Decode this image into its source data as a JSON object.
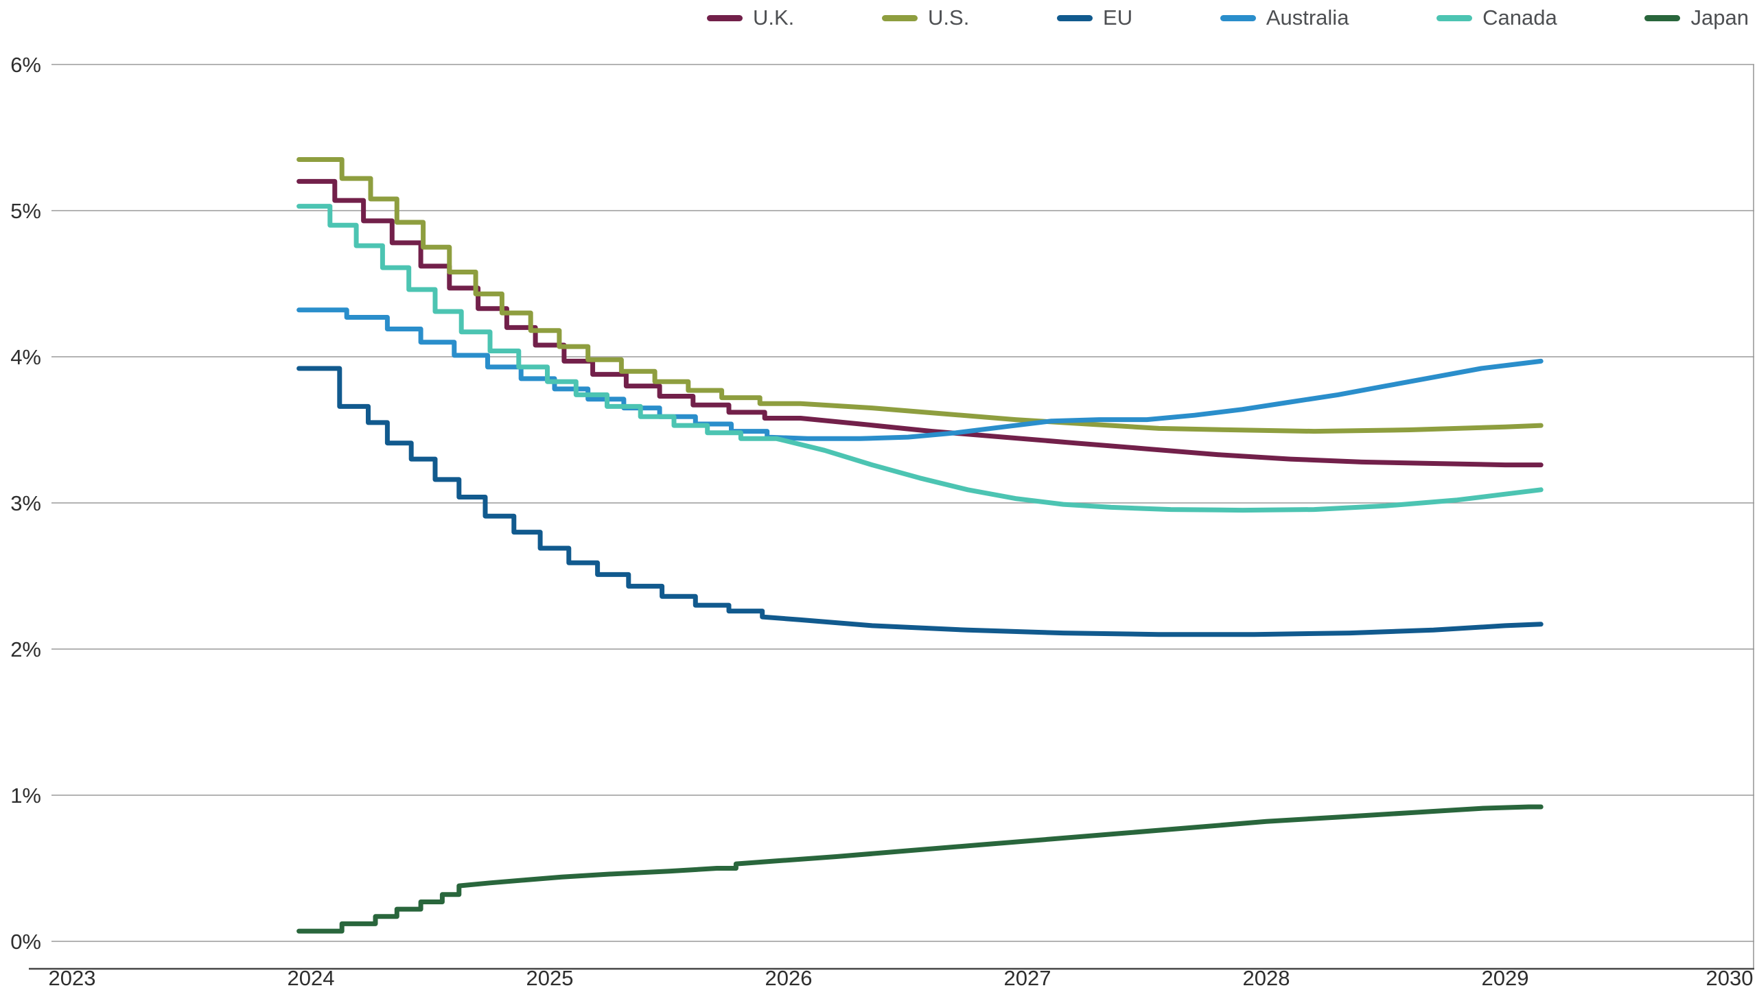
{
  "chart_data": {
    "type": "line",
    "title": "",
    "xlabel": "",
    "ylabel": "",
    "grid": "horizontal",
    "legend_position": "top-right",
    "x_axis": {
      "range": [
        2023,
        2030
      ],
      "ticks": [
        "2023",
        "2024",
        "2025",
        "2026",
        "2027",
        "2028",
        "2029",
        "2030"
      ],
      "tick_values": [
        2023,
        2024,
        2025,
        2026,
        2027,
        2028,
        2029,
        2030
      ]
    },
    "y_axis": {
      "range": [
        0,
        6
      ],
      "ticks": [
        "0%",
        "1%",
        "2%",
        "3%",
        "4%",
        "5%",
        "6%"
      ],
      "tick_values": [
        0,
        1,
        2,
        3,
        4,
        5,
        6
      ]
    },
    "colors": {
      "grid": "#9a9a9a",
      "axis": "#454545",
      "tick_text": "#2e2e2e"
    },
    "series": [
      {
        "name": "U.K.",
        "color": "#72204a",
        "points": [
          [
            2023.95,
            5.2
          ],
          [
            2024.1,
            5.2
          ],
          [
            2024.1,
            5.07
          ],
          [
            2024.22,
            5.07
          ],
          [
            2024.22,
            4.93
          ],
          [
            2024.34,
            4.93
          ],
          [
            2024.34,
            4.78
          ],
          [
            2024.46,
            4.78
          ],
          [
            2024.46,
            4.62
          ],
          [
            2024.58,
            4.62
          ],
          [
            2024.58,
            4.47
          ],
          [
            2024.7,
            4.47
          ],
          [
            2024.7,
            4.33
          ],
          [
            2024.82,
            4.33
          ],
          [
            2024.82,
            4.2
          ],
          [
            2024.94,
            4.2
          ],
          [
            2024.94,
            4.08
          ],
          [
            2025.06,
            4.08
          ],
          [
            2025.06,
            3.97
          ],
          [
            2025.18,
            3.97
          ],
          [
            2025.18,
            3.88
          ],
          [
            2025.32,
            3.88
          ],
          [
            2025.32,
            3.8
          ],
          [
            2025.46,
            3.8
          ],
          [
            2025.46,
            3.73
          ],
          [
            2025.6,
            3.73
          ],
          [
            2025.6,
            3.67
          ],
          [
            2025.75,
            3.67
          ],
          [
            2025.75,
            3.62
          ],
          [
            2025.9,
            3.62
          ],
          [
            2025.9,
            3.58
          ],
          [
            2026.05,
            3.58
          ],
          [
            2026.3,
            3.54
          ],
          [
            2026.6,
            3.49
          ],
          [
            2026.9,
            3.45
          ],
          [
            2027.2,
            3.41
          ],
          [
            2027.5,
            3.37
          ],
          [
            2027.8,
            3.33
          ],
          [
            2028.1,
            3.3
          ],
          [
            2028.4,
            3.28
          ],
          [
            2028.7,
            3.27
          ],
          [
            2029.0,
            3.26
          ],
          [
            2029.15,
            3.26
          ]
        ]
      },
      {
        "name": "U.S.",
        "color": "#8e9e3f",
        "points": [
          [
            2023.95,
            5.35
          ],
          [
            2024.13,
            5.35
          ],
          [
            2024.13,
            5.22
          ],
          [
            2024.25,
            5.22
          ],
          [
            2024.25,
            5.08
          ],
          [
            2024.36,
            5.08
          ],
          [
            2024.36,
            4.92
          ],
          [
            2024.47,
            4.92
          ],
          [
            2024.47,
            4.75
          ],
          [
            2024.58,
            4.75
          ],
          [
            2024.58,
            4.58
          ],
          [
            2024.69,
            4.58
          ],
          [
            2024.69,
            4.43
          ],
          [
            2024.8,
            4.43
          ],
          [
            2024.8,
            4.3
          ],
          [
            2024.92,
            4.3
          ],
          [
            2024.92,
            4.18
          ],
          [
            2025.04,
            4.18
          ],
          [
            2025.04,
            4.07
          ],
          [
            2025.16,
            4.07
          ],
          [
            2025.16,
            3.98
          ],
          [
            2025.3,
            3.98
          ],
          [
            2025.3,
            3.9
          ],
          [
            2025.44,
            3.9
          ],
          [
            2025.44,
            3.83
          ],
          [
            2025.58,
            3.83
          ],
          [
            2025.58,
            3.77
          ],
          [
            2025.72,
            3.77
          ],
          [
            2025.72,
            3.72
          ],
          [
            2025.88,
            3.72
          ],
          [
            2025.88,
            3.68
          ],
          [
            2026.05,
            3.68
          ],
          [
            2026.35,
            3.65
          ],
          [
            2026.65,
            3.61
          ],
          [
            2026.95,
            3.57
          ],
          [
            2027.25,
            3.54
          ],
          [
            2027.55,
            3.51
          ],
          [
            2027.85,
            3.5
          ],
          [
            2028.2,
            3.49
          ],
          [
            2028.6,
            3.5
          ],
          [
            2029.0,
            3.52
          ],
          [
            2029.15,
            3.53
          ]
        ]
      },
      {
        "name": "EU",
        "color": "#115a8e",
        "points": [
          [
            2023.95,
            3.92
          ],
          [
            2024.12,
            3.92
          ],
          [
            2024.12,
            3.66
          ],
          [
            2024.24,
            3.66
          ],
          [
            2024.24,
            3.55
          ],
          [
            2024.32,
            3.55
          ],
          [
            2024.32,
            3.41
          ],
          [
            2024.42,
            3.41
          ],
          [
            2024.42,
            3.3
          ],
          [
            2024.52,
            3.3
          ],
          [
            2024.52,
            3.16
          ],
          [
            2024.62,
            3.16
          ],
          [
            2024.62,
            3.04
          ],
          [
            2024.73,
            3.04
          ],
          [
            2024.73,
            2.91
          ],
          [
            2024.85,
            2.91
          ],
          [
            2024.85,
            2.8
          ],
          [
            2024.96,
            2.8
          ],
          [
            2024.96,
            2.69
          ],
          [
            2025.08,
            2.69
          ],
          [
            2025.08,
            2.59
          ],
          [
            2025.2,
            2.59
          ],
          [
            2025.2,
            2.51
          ],
          [
            2025.33,
            2.51
          ],
          [
            2025.33,
            2.43
          ],
          [
            2025.47,
            2.43
          ],
          [
            2025.47,
            2.36
          ],
          [
            2025.61,
            2.36
          ],
          [
            2025.61,
            2.3
          ],
          [
            2025.75,
            2.3
          ],
          [
            2025.75,
            2.26
          ],
          [
            2025.89,
            2.26
          ],
          [
            2025.89,
            2.22
          ],
          [
            2026.05,
            2.2
          ],
          [
            2026.35,
            2.16
          ],
          [
            2026.75,
            2.13
          ],
          [
            2027.15,
            2.11
          ],
          [
            2027.55,
            2.1
          ],
          [
            2027.95,
            2.1
          ],
          [
            2028.35,
            2.11
          ],
          [
            2028.7,
            2.13
          ],
          [
            2029.0,
            2.16
          ],
          [
            2029.15,
            2.17
          ]
        ]
      },
      {
        "name": "Australia",
        "color": "#2a8ecb",
        "points": [
          [
            2023.95,
            4.32
          ],
          [
            2024.15,
            4.32
          ],
          [
            2024.15,
            4.27
          ],
          [
            2024.32,
            4.27
          ],
          [
            2024.32,
            4.19
          ],
          [
            2024.46,
            4.19
          ],
          [
            2024.46,
            4.1
          ],
          [
            2024.6,
            4.1
          ],
          [
            2024.6,
            4.01
          ],
          [
            2024.74,
            4.01
          ],
          [
            2024.74,
            3.93
          ],
          [
            2024.88,
            3.93
          ],
          [
            2024.88,
            3.85
          ],
          [
            2025.02,
            3.85
          ],
          [
            2025.02,
            3.78
          ],
          [
            2025.16,
            3.78
          ],
          [
            2025.16,
            3.71
          ],
          [
            2025.31,
            3.71
          ],
          [
            2025.31,
            3.65
          ],
          [
            2025.46,
            3.65
          ],
          [
            2025.46,
            3.59
          ],
          [
            2025.61,
            3.59
          ],
          [
            2025.61,
            3.54
          ],
          [
            2025.76,
            3.54
          ],
          [
            2025.76,
            3.49
          ],
          [
            2025.91,
            3.49
          ],
          [
            2025.91,
            3.45
          ],
          [
            2026.08,
            3.44
          ],
          [
            2026.3,
            3.44
          ],
          [
            2026.5,
            3.45
          ],
          [
            2026.7,
            3.48
          ],
          [
            2026.9,
            3.52
          ],
          [
            2027.1,
            3.56
          ],
          [
            2027.3,
            3.57
          ],
          [
            2027.5,
            3.57
          ],
          [
            2027.7,
            3.6
          ],
          [
            2027.9,
            3.64
          ],
          [
            2028.1,
            3.69
          ],
          [
            2028.3,
            3.74
          ],
          [
            2028.5,
            3.8
          ],
          [
            2028.7,
            3.86
          ],
          [
            2028.9,
            3.92
          ],
          [
            2029.05,
            3.95
          ],
          [
            2029.15,
            3.97
          ]
        ]
      },
      {
        "name": "Canada",
        "color": "#4cc4b2",
        "points": [
          [
            2023.95,
            5.03
          ],
          [
            2024.08,
            5.03
          ],
          [
            2024.08,
            4.9
          ],
          [
            2024.19,
            4.9
          ],
          [
            2024.19,
            4.76
          ],
          [
            2024.3,
            4.76
          ],
          [
            2024.3,
            4.61
          ],
          [
            2024.41,
            4.61
          ],
          [
            2024.41,
            4.46
          ],
          [
            2024.52,
            4.46
          ],
          [
            2024.52,
            4.31
          ],
          [
            2024.63,
            4.31
          ],
          [
            2024.63,
            4.17
          ],
          [
            2024.75,
            4.17
          ],
          [
            2024.75,
            4.04
          ],
          [
            2024.87,
            4.04
          ],
          [
            2024.87,
            3.93
          ],
          [
            2024.99,
            3.93
          ],
          [
            2024.99,
            3.83
          ],
          [
            2025.11,
            3.83
          ],
          [
            2025.11,
            3.74
          ],
          [
            2025.24,
            3.74
          ],
          [
            2025.24,
            3.66
          ],
          [
            2025.38,
            3.66
          ],
          [
            2025.38,
            3.59
          ],
          [
            2025.52,
            3.59
          ],
          [
            2025.52,
            3.53
          ],
          [
            2025.66,
            3.53
          ],
          [
            2025.66,
            3.48
          ],
          [
            2025.8,
            3.48
          ],
          [
            2025.8,
            3.44
          ],
          [
            2025.95,
            3.44
          ],
          [
            2026.15,
            3.36
          ],
          [
            2026.35,
            3.26
          ],
          [
            2026.55,
            3.17
          ],
          [
            2026.75,
            3.09
          ],
          [
            2026.95,
            3.03
          ],
          [
            2027.15,
            2.99
          ],
          [
            2027.35,
            2.97
          ],
          [
            2027.6,
            2.955
          ],
          [
            2027.9,
            2.95
          ],
          [
            2028.2,
            2.955
          ],
          [
            2028.5,
            2.98
          ],
          [
            2028.8,
            3.02
          ],
          [
            2029.0,
            3.06
          ],
          [
            2029.15,
            3.09
          ]
        ]
      },
      {
        "name": "Japan",
        "color": "#29663c",
        "points": [
          [
            2023.95,
            0.07
          ],
          [
            2024.13,
            0.07
          ],
          [
            2024.13,
            0.12
          ],
          [
            2024.27,
            0.12
          ],
          [
            2024.27,
            0.17
          ],
          [
            2024.36,
            0.17
          ],
          [
            2024.36,
            0.22
          ],
          [
            2024.46,
            0.22
          ],
          [
            2024.46,
            0.27
          ],
          [
            2024.55,
            0.27
          ],
          [
            2024.55,
            0.32
          ],
          [
            2024.62,
            0.32
          ],
          [
            2024.62,
            0.38
          ],
          [
            2024.75,
            0.4
          ],
          [
            2024.9,
            0.42
          ],
          [
            2025.05,
            0.44
          ],
          [
            2025.25,
            0.46
          ],
          [
            2025.5,
            0.48
          ],
          [
            2025.7,
            0.5
          ],
          [
            2025.78,
            0.5
          ],
          [
            2025.78,
            0.53
          ],
          [
            2025.95,
            0.55
          ],
          [
            2026.2,
            0.58
          ],
          [
            2026.5,
            0.62
          ],
          [
            2026.8,
            0.66
          ],
          [
            2027.1,
            0.7
          ],
          [
            2027.4,
            0.74
          ],
          [
            2027.7,
            0.78
          ],
          [
            2028.0,
            0.82
          ],
          [
            2028.3,
            0.85
          ],
          [
            2028.6,
            0.88
          ],
          [
            2028.9,
            0.91
          ],
          [
            2029.1,
            0.92
          ],
          [
            2029.15,
            0.92
          ]
        ]
      }
    ]
  }
}
